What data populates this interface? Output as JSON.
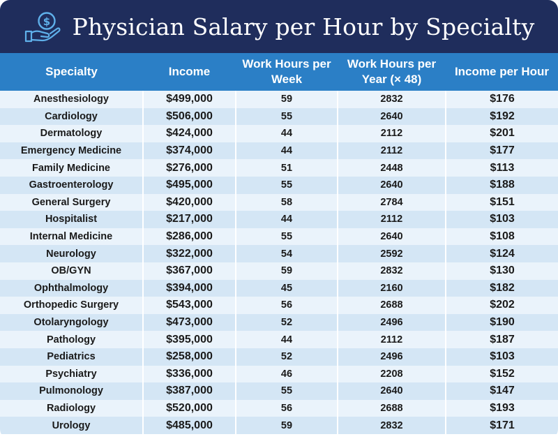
{
  "header": {
    "title": "Physician Salary per Hour by Specialty",
    "icon": "hand-holding-dollar-icon",
    "background_color": "#1f2d5c"
  },
  "chart_data": {
    "type": "table",
    "title": "Physician Salary per Hour by Specialty",
    "columns": [
      "Specialty",
      "Income",
      "Work Hours per Week",
      "Work Hours per Year (× 48)",
      "Income per Hour"
    ],
    "header_color": "#2b7fc6",
    "rows": [
      {
        "specialty": "Anesthesiology",
        "income": "$499,000",
        "hours_week": "59",
        "hours_year": "2832",
        "per_hour": "$176"
      },
      {
        "specialty": "Cardiology",
        "income": "$506,000",
        "hours_week": "55",
        "hours_year": "2640",
        "per_hour": "$192"
      },
      {
        "specialty": "Dermatology",
        "income": "$424,000",
        "hours_week": "44",
        "hours_year": "2112",
        "per_hour": "$201"
      },
      {
        "specialty": "Emergency Medicine",
        "income": "$374,000",
        "hours_week": "44",
        "hours_year": "2112",
        "per_hour": "$177"
      },
      {
        "specialty": "Family Medicine",
        "income": "$276,000",
        "hours_week": "51",
        "hours_year": "2448",
        "per_hour": "$113"
      },
      {
        "specialty": "Gastroenterology",
        "income": "$495,000",
        "hours_week": "55",
        "hours_year": "2640",
        "per_hour": "$188"
      },
      {
        "specialty": "General Surgery",
        "income": "$420,000",
        "hours_week": "58",
        "hours_year": "2784",
        "per_hour": "$151"
      },
      {
        "specialty": "Hospitalist",
        "income": "$217,000",
        "hours_week": "44",
        "hours_year": "2112",
        "per_hour": "$103"
      },
      {
        "specialty": "Internal Medicine",
        "income": "$286,000",
        "hours_week": "55",
        "hours_year": "2640",
        "per_hour": "$108"
      },
      {
        "specialty": "Neurology",
        "income": "$322,000",
        "hours_week": "54",
        "hours_year": "2592",
        "per_hour": "$124"
      },
      {
        "specialty": "OB/GYN",
        "income": "$367,000",
        "hours_week": "59",
        "hours_year": "2832",
        "per_hour": "$130"
      },
      {
        "specialty": "Ophthalmology",
        "income": "$394,000",
        "hours_week": "45",
        "hours_year": "2160",
        "per_hour": "$182"
      },
      {
        "specialty": "Orthopedic Surgery",
        "income": "$543,000",
        "hours_week": "56",
        "hours_year": "2688",
        "per_hour": "$202"
      },
      {
        "specialty": "Otolaryngology",
        "income": "$473,000",
        "hours_week": "52",
        "hours_year": "2496",
        "per_hour": "$190"
      },
      {
        "specialty": "Pathology",
        "income": "$395,000",
        "hours_week": "44",
        "hours_year": "2112",
        "per_hour": "$187"
      },
      {
        "specialty": "Pediatrics",
        "income": "$258,000",
        "hours_week": "52",
        "hours_year": "2496",
        "per_hour": "$103"
      },
      {
        "specialty": "Psychiatry",
        "income": "$336,000",
        "hours_week": "46",
        "hours_year": "2208",
        "per_hour": "$152"
      },
      {
        "specialty": "Pulmonology",
        "income": "$387,000",
        "hours_week": "55",
        "hours_year": "2640",
        "per_hour": "$147"
      },
      {
        "specialty": "Radiology",
        "income": "$520,000",
        "hours_week": "56",
        "hours_year": "2688",
        "per_hour": "$193"
      },
      {
        "specialty": "Urology",
        "income": "$485,000",
        "hours_week": "59",
        "hours_year": "2832",
        "per_hour": "$171"
      }
    ]
  }
}
